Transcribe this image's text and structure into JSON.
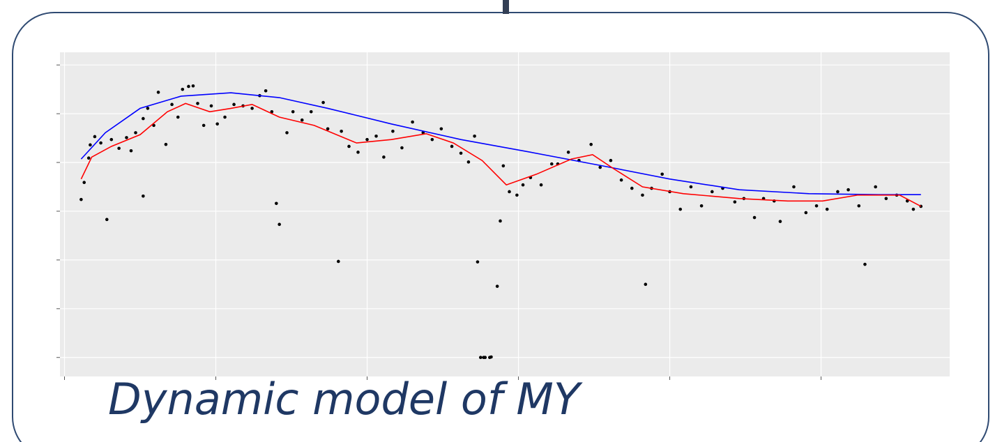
{
  "chart_data": {
    "type": "scatter",
    "caption": "Dynamic model of MY",
    "xlim": [
      -0.03,
      5.85
    ],
    "ylim": [
      -0.39,
      6.26
    ],
    "xticks": [
      0,
      1,
      2,
      3,
      4,
      5
    ],
    "yticks": [
      0,
      1,
      2,
      3,
      4,
      5,
      6
    ],
    "grid": true,
    "series": [
      {
        "type": "scatter",
        "color": "#000000",
        "x": [
          0.11,
          0.13,
          0.16,
          0.17,
          0.2,
          0.24,
          0.28,
          0.31,
          0.36,
          0.41,
          0.44,
          0.47,
          0.52,
          0.52,
          0.55,
          0.59,
          0.62,
          0.67,
          0.71,
          0.75,
          0.78,
          0.82,
          0.85,
          0.88,
          0.92,
          0.97,
          1.01,
          1.06,
          1.12,
          1.18,
          1.24,
          1.29,
          1.33,
          1.37,
          1.4,
          1.42,
          1.47,
          1.51,
          1.57,
          1.63,
          1.71,
          1.74,
          1.81,
          1.83,
          1.88,
          1.94,
          2.0,
          2.06,
          2.11,
          2.17,
          2.23,
          2.3,
          2.37,
          2.43,
          2.49,
          2.56,
          2.62,
          2.67,
          2.71,
          2.73,
          2.75,
          2.77,
          2.78,
          2.81,
          2.82,
          2.86,
          2.88,
          2.9,
          2.94,
          2.99,
          3.03,
          3.08,
          3.15,
          3.22,
          3.26,
          3.33,
          3.4,
          3.48,
          3.54,
          3.61,
          3.68,
          3.75,
          3.84,
          3.82,
          3.88,
          3.95,
          4.0,
          4.07,
          4.14,
          4.21,
          4.28,
          4.35,
          4.43,
          4.49,
          4.56,
          4.62,
          4.69,
          4.73,
          4.82,
          4.9,
          4.97,
          5.04,
          5.11,
          5.18,
          5.25,
          5.29,
          5.36,
          5.43,
          5.5,
          5.57,
          5.61,
          5.66
        ],
        "values": [
          3.24,
          3.59,
          4.09,
          4.36,
          4.53,
          4.4,
          2.83,
          4.47,
          4.29,
          4.51,
          4.24,
          4.61,
          3.31,
          4.9,
          5.11,
          4.76,
          5.44,
          4.37,
          5.19,
          4.93,
          5.5,
          5.56,
          5.57,
          5.21,
          4.76,
          5.16,
          4.79,
          4.93,
          5.19,
          5.16,
          5.11,
          5.37,
          5.47,
          5.04,
          3.16,
          2.73,
          4.61,
          5.04,
          4.87,
          5.04,
          5.23,
          4.69,
          1.97,
          4.64,
          4.33,
          4.21,
          4.47,
          4.54,
          4.11,
          4.64,
          4.3,
          4.83,
          4.61,
          4.47,
          4.69,
          4.33,
          4.19,
          4.01,
          4.54,
          1.96,
          0,
          0,
          0,
          0,
          0.01,
          1.46,
          2.8,
          3.93,
          3.4,
          3.33,
          3.54,
          3.69,
          3.54,
          3.97,
          3.97,
          4.21,
          4.04,
          4.37,
          3.9,
          4.04,
          3.64,
          3.47,
          1.5,
          3.33,
          3.47,
          3.76,
          3.4,
          3.04,
          3.5,
          3.11,
          3.4,
          3.47,
          3.19,
          3.26,
          2.87,
          3.26,
          3.21,
          2.79,
          3.5,
          2.97,
          3.11,
          3.04,
          3.4,
          3.44,
          3.11,
          1.91,
          3.5,
          3.26,
          3.33,
          3.21,
          3.04,
          3.1
        ]
      },
      {
        "type": "line",
        "color": "#0000ff",
        "x": [
          0.11,
          0.27,
          0.5,
          0.77,
          1.1,
          1.42,
          1.74,
          2.16,
          2.62,
          3.08,
          3.54,
          4.0,
          4.46,
          4.92,
          5.38,
          5.66
        ],
        "values": [
          4.07,
          4.61,
          5.11,
          5.36,
          5.43,
          5.33,
          5.11,
          4.79,
          4.47,
          4.21,
          3.94,
          3.66,
          3.44,
          3.36,
          3.34,
          3.34
        ]
      },
      {
        "type": "line",
        "color": "#ff0000",
        "x": [
          0.11,
          0.18,
          0.31,
          0.5,
          0.68,
          0.8,
          0.96,
          1.1,
          1.24,
          1.42,
          1.65,
          1.93,
          2.16,
          2.39,
          2.57,
          2.76,
          2.92,
          3.12,
          3.35,
          3.49,
          3.63,
          3.82,
          4.09,
          4.46,
          4.78,
          5.01,
          5.24,
          5.52,
          5.66
        ],
        "values": [
          3.66,
          4.11,
          4.33,
          4.57,
          5.04,
          5.21,
          5.04,
          5.11,
          5.19,
          4.93,
          4.76,
          4.4,
          4.47,
          4.59,
          4.4,
          4.04,
          3.54,
          3.76,
          4.07,
          4.16,
          3.87,
          3.5,
          3.36,
          3.26,
          3.21,
          3.21,
          3.33,
          3.33,
          3.1
        ]
      }
    ]
  }
}
